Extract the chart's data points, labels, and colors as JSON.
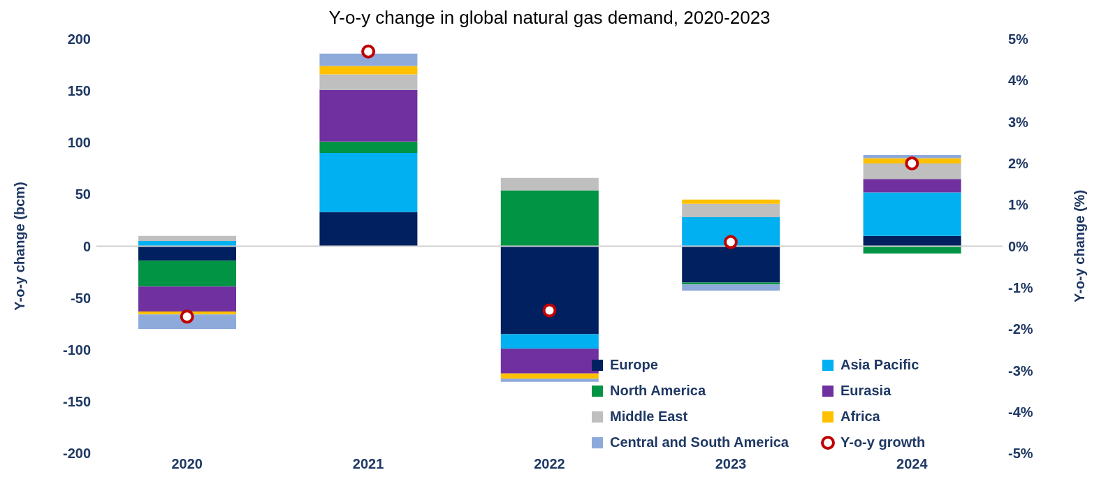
{
  "chart_data": {
    "type": "bar",
    "title": "Y-o-y change in global natural gas demand, 2020-2023",
    "ylabel": "Y-o-y change (bcm)",
    "y2label": "Y-o-y change (%)",
    "categories": [
      "2020",
      "2021",
      "2022",
      "2023",
      "2024"
    ],
    "stacked": true,
    "series": [
      {
        "name": "Europe",
        "color": "#002060",
        "values": [
          -14,
          33,
          -85,
          -35,
          10
        ]
      },
      {
        "name": "Asia Pacific",
        "color": "#00b0f0",
        "values": [
          5,
          57,
          -14,
          28,
          42
        ]
      },
      {
        "name": "North America",
        "color": "#009444",
        "values": [
          -25,
          11,
          54,
          -2,
          -7
        ]
      },
      {
        "name": "Eurasia",
        "color": "#7030a0",
        "values": [
          -24,
          50,
          -24,
          0,
          13
        ]
      },
      {
        "name": "Middle East",
        "color": "#bfbfbf",
        "values": [
          5,
          15,
          12,
          13,
          15
        ]
      },
      {
        "name": "Africa",
        "color": "#ffc000",
        "values": [
          -3,
          8,
          -5,
          4,
          5
        ]
      },
      {
        "name": "Central and South America",
        "color": "#8eaadb",
        "values": [
          -14,
          12,
          -3,
          -6,
          3
        ]
      },
      {
        "name": "Y-o-y growth",
        "type": "scatter",
        "axis": "y2",
        "color": "#c00000",
        "marker": "circle",
        "values": [
          -1.7,
          4.7,
          -1.55,
          0.1,
          2.0
        ]
      }
    ],
    "ylim": [
      -200,
      200
    ],
    "yticks": [
      -200,
      -150,
      -100,
      -50,
      0,
      50,
      100,
      150,
      200
    ],
    "y2lim": [
      -5,
      5
    ],
    "y2ticks": [
      {
        "value": -5,
        "label": "-5%"
      },
      {
        "value": -4,
        "label": "-4%"
      },
      {
        "value": -3,
        "label": "-3%"
      },
      {
        "value": -2,
        "label": "-2%"
      },
      {
        "value": -1,
        "label": "-1%"
      },
      {
        "value": 0,
        "label": "0%"
      },
      {
        "value": 1,
        "label": "1%"
      },
      {
        "value": 2,
        "label": "2%"
      },
      {
        "value": 3,
        "label": "3%"
      },
      {
        "value": 4,
        "label": "4%"
      },
      {
        "value": 5,
        "label": "5%"
      }
    ],
    "legend": "bottom right"
  }
}
